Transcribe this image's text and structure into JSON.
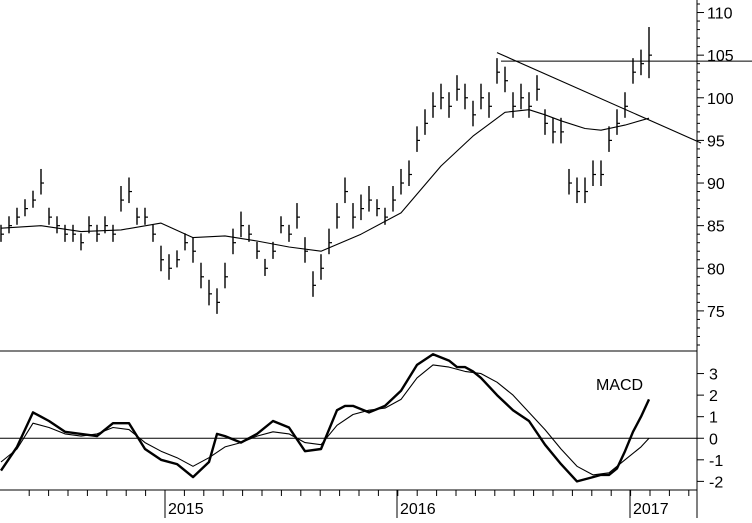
{
  "chart_data": [
    {
      "type": "bar",
      "subtype": "ohlc-weekly",
      "title": "",
      "ylim": [
        71,
        111
      ],
      "y_ticks": [
        75,
        80,
        85,
        90,
        95,
        100,
        105,
        110
      ],
      "y_tick_labels": [
        "75",
        "80",
        "85",
        "90",
        "95",
        "100",
        "105",
        "110"
      ],
      "x_year_labels": [
        "2015",
        "2016",
        "2017"
      ],
      "price_series": {
        "t": [
          0,
          2,
          4,
          6,
          8,
          10,
          12,
          14,
          16,
          18,
          20,
          22,
          24,
          26,
          28,
          30,
          32,
          34,
          36,
          38,
          40,
          42,
          44,
          46,
          48,
          50,
          52,
          54,
          56,
          58,
          60,
          62,
          64,
          66,
          68,
          70,
          72,
          74,
          76,
          78,
          80,
          82,
          84,
          86,
          88,
          90,
          92,
          94,
          96,
          98,
          100,
          102,
          104,
          106,
          108,
          110,
          112,
          114,
          116,
          118,
          120,
          122,
          124,
          126,
          128,
          130,
          132,
          134,
          136,
          138,
          140,
          142,
          144,
          146,
          148,
          150,
          152,
          154,
          156,
          158,
          160,
          162
        ],
        "close": [
          84,
          85,
          86,
          87,
          88,
          90,
          86,
          85,
          84,
          84,
          83,
          85,
          84,
          85,
          84,
          88,
          89,
          86,
          86,
          84,
          81,
          80,
          81,
          83,
          82,
          79,
          77,
          76,
          79,
          83,
          85,
          84,
          82,
          80,
          82,
          85,
          84,
          86,
          82,
          78,
          80,
          83,
          86,
          89,
          86,
          87,
          88,
          87,
          86,
          88,
          90,
          91,
          95,
          97,
          99,
          100,
          99,
          101,
          100,
          98,
          100,
          99,
          103,
          102,
          99,
          100,
          99,
          101,
          97,
          96,
          96,
          90,
          89,
          89,
          91,
          91,
          95,
          97,
          99,
          103,
          104,
          105
        ],
        "range": [
          2,
          2,
          2,
          2,
          2,
          3,
          2,
          2,
          2,
          2,
          2,
          2,
          2,
          2,
          2,
          3,
          3,
          2,
          2,
          2,
          3,
          3,
          2,
          2,
          3,
          3,
          3,
          3,
          3,
          3,
          3,
          2,
          2,
          2,
          2,
          2,
          2,
          3,
          3,
          3,
          3,
          3,
          3,
          3,
          3,
          3,
          3,
          2,
          2,
          3,
          3,
          3,
          3,
          3,
          3,
          3,
          3,
          3,
          3,
          3,
          3,
          3,
          3,
          3,
          3,
          3,
          3,
          3,
          3,
          3,
          3,
          3,
          3,
          3,
          3,
          3,
          3,
          3,
          3,
          3,
          3,
          6
        ]
      },
      "moving_average": {
        "t": [
          0,
          10,
          20,
          30,
          40,
          48,
          56,
          64,
          72,
          80,
          90,
          100,
          110,
          118,
          126,
          132,
          136,
          140,
          146,
          150,
          156,
          162
        ],
        "values": [
          84.7,
          85,
          84.3,
          84.5,
          85.3,
          83.6,
          83.8,
          83.2,
          82.5,
          82,
          84,
          86.5,
          92,
          95.5,
          98.3,
          98.6,
          98,
          97.3,
          96.4,
          96.2,
          96.8,
          97.6
        ]
      },
      "trendlines": [
        {
          "name": "resistance",
          "t": [
            125,
            188
          ],
          "values": [
            104.3,
            104.3
          ]
        },
        {
          "name": "downtrend",
          "t": [
            124,
            175
          ],
          "values": [
            105.3,
            94.7
          ]
        }
      ]
    },
    {
      "type": "line",
      "subtype": "macd",
      "annotation": "MACD",
      "ylim": [
        -2.4,
        4.0
      ],
      "y_ticks": [
        -2,
        -1,
        0,
        1,
        2,
        3
      ],
      "y_tick_labels": [
        "-2",
        "-1",
        "0",
        "1",
        "2",
        "3"
      ],
      "series": [
        {
          "t": [
            0,
            4,
            8,
            10,
            12,
            16,
            20,
            24,
            28,
            32,
            36,
            40,
            44,
            48,
            52,
            54,
            56,
            60,
            64,
            68,
            72,
            76,
            80,
            84,
            86,
            88,
            92,
            96,
            100,
            104,
            108,
            112,
            114,
            116,
            118,
            120,
            124,
            128,
            132,
            136,
            140,
            144,
            148,
            150,
            152,
            154,
            156,
            158,
            160,
            162
          ],
          "values": [
            -1.5,
            -0.4,
            1.2,
            1,
            0.8,
            0.3,
            0.2,
            0.1,
            0.7,
            0.7,
            -0.5,
            -1,
            -1.2,
            -1.8,
            -1.1,
            0.2,
            0.1,
            -0.2,
            0.2,
            0.8,
            0.5,
            -0.6,
            -0.5,
            1.3,
            1.5,
            1.5,
            1.2,
            1.5,
            2.2,
            3.4,
            3.9,
            3.6,
            3.3,
            3.3,
            3.1,
            2.8,
            2,
            1.3,
            0.8,
            -0.3,
            -1.2,
            -2,
            -1.8,
            -1.7,
            -1.7,
            -1.4,
            -0.6,
            0.3,
            1,
            1.8
          ]
        },
        {
          "t": [
            0,
            4,
            8,
            12,
            16,
            20,
            24,
            28,
            32,
            36,
            40,
            44,
            48,
            52,
            56,
            60,
            64,
            68,
            72,
            76,
            80,
            84,
            88,
            92,
            96,
            100,
            104,
            108,
            112,
            116,
            120,
            124,
            128,
            132,
            136,
            140,
            144,
            148,
            152,
            156,
            160,
            162
          ],
          "values": [
            -1.1,
            -0.5,
            0.7,
            0.5,
            0.2,
            0.1,
            0.2,
            0.5,
            0.4,
            -0.2,
            -0.6,
            -0.9,
            -1.3,
            -0.9,
            -0.4,
            -0.2,
            0.1,
            0.3,
            0.2,
            -0.2,
            -0.3,
            0.6,
            1.1,
            1.3,
            1.4,
            1.8,
            2.8,
            3.4,
            3.3,
            3.1,
            3,
            2.6,
            2,
            1.2,
            0.4,
            -0.5,
            -1.3,
            -1.7,
            -1.6,
            -1,
            -0.4,
            0
          ]
        }
      ]
    }
  ]
}
